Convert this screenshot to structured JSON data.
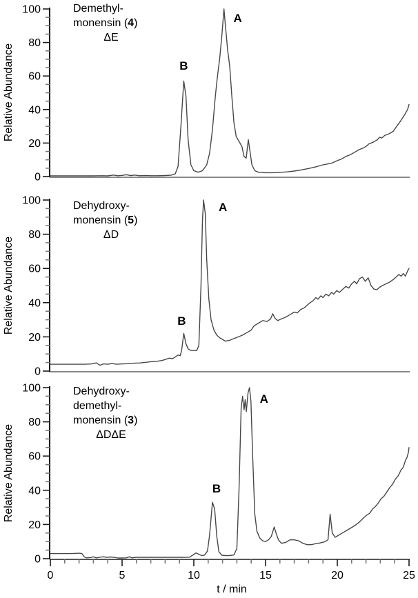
{
  "figure": {
    "y_axis_label": "Relative Abundance",
    "x_axis_label": "t / min"
  },
  "chart_data": {
    "type": "line",
    "xlabel": "t / min",
    "ylabel": "Relative Abundance",
    "xlim": [
      0,
      25
    ],
    "ylim": [
      0,
      100
    ],
    "x_tick_labels": [
      0,
      5,
      10,
      15,
      20,
      25
    ],
    "x_minor_step": 1,
    "y_tick_labels": [
      0,
      20,
      40,
      60,
      80,
      100
    ],
    "y_minor_step": 5,
    "trace_color": "#474747",
    "axis_color": "#1a1a1a",
    "panels": [
      {
        "name": "demethylmonensin",
        "title_lines": [
          "Demethyl-"
        ],
        "compound_line": {
          "pre": "monensin (",
          "number": "4",
          "post": ")"
        },
        "delta_label": "ΔE",
        "peaks": [
          {
            "label": "A",
            "t": 12.1,
            "abundance": 100
          },
          {
            "label": "B",
            "t": 9.3,
            "abundance": 57
          }
        ],
        "series": [
          [
            0,
            0.4
          ],
          [
            1,
            0.4
          ],
          [
            2,
            0.4
          ],
          [
            3,
            0.4
          ],
          [
            3.6,
            0.5
          ],
          [
            4,
            0.4
          ],
          [
            4.4,
            0.9
          ],
          [
            4.7,
            0.5
          ],
          [
            5,
            0.7
          ],
          [
            5.3,
            1.1
          ],
          [
            5.6,
            0.6
          ],
          [
            5.9,
            0.9
          ],
          [
            6.2,
            0.5
          ],
          [
            6.6,
            0.6
          ],
          [
            7,
            0.5
          ],
          [
            7.5,
            0.5
          ],
          [
            8,
            0.6
          ],
          [
            8.4,
            0.8
          ],
          [
            8.7,
            1.6
          ],
          [
            8.9,
            6
          ],
          [
            9.1,
            30
          ],
          [
            9.3,
            57
          ],
          [
            9.45,
            48
          ],
          [
            9.6,
            22
          ],
          [
            9.8,
            7
          ],
          [
            10,
            3.5
          ],
          [
            10.3,
            2.6
          ],
          [
            10.6,
            3.5
          ],
          [
            10.9,
            7
          ],
          [
            11.1,
            14
          ],
          [
            11.3,
            28
          ],
          [
            11.5,
            48
          ],
          [
            11.65,
            60
          ],
          [
            11.8,
            70
          ],
          [
            11.95,
            84
          ],
          [
            12.1,
            100
          ],
          [
            12.2,
            90
          ],
          [
            12.35,
            76
          ],
          [
            12.5,
            66
          ],
          [
            12.65,
            48
          ],
          [
            12.8,
            32
          ],
          [
            12.95,
            24
          ],
          [
            13.15,
            21
          ],
          [
            13.35,
            18
          ],
          [
            13.5,
            12
          ],
          [
            13.65,
            11
          ],
          [
            13.8,
            22
          ],
          [
            13.9,
            16
          ],
          [
            14.05,
            7
          ],
          [
            14.25,
            3.5
          ],
          [
            14.5,
            2.6
          ],
          [
            15,
            2.3
          ],
          [
            15.5,
            2.3
          ],
          [
            16,
            2.5
          ],
          [
            16.5,
            2.8
          ],
          [
            17,
            3.3
          ],
          [
            17.5,
            4
          ],
          [
            18,
            4.8
          ],
          [
            18.5,
            5.8
          ],
          [
            19,
            7
          ],
          [
            19.3,
            7.5
          ],
          [
            19.6,
            8
          ],
          [
            20,
            9.5
          ],
          [
            20.3,
            10.5
          ],
          [
            20.6,
            12
          ],
          [
            20.9,
            13
          ],
          [
            21.2,
            14.5
          ],
          [
            21.5,
            16
          ],
          [
            21.8,
            17
          ],
          [
            22,
            18
          ],
          [
            22.2,
            19.5
          ],
          [
            22.5,
            20.5
          ],
          [
            22.8,
            22
          ],
          [
            22.95,
            23.5
          ],
          [
            23.1,
            23
          ],
          [
            23.3,
            24.5
          ],
          [
            23.6,
            25.5
          ],
          [
            23.9,
            27
          ],
          [
            24.1,
            29.5
          ],
          [
            24.4,
            33
          ],
          [
            24.7,
            37
          ],
          [
            24.9,
            40
          ],
          [
            25,
            43
          ]
        ]
      },
      {
        "name": "dehydroxymonensin",
        "title_lines": [
          "Dehydroxy-"
        ],
        "compound_line": {
          "pre": "monensin (",
          "number": "5",
          "post": ")"
        },
        "delta_label": "ΔD",
        "peaks": [
          {
            "label": "A",
            "t": 10.68,
            "abundance": 100
          },
          {
            "label": "B",
            "t": 9.3,
            "abundance": 22
          }
        ],
        "series": [
          [
            0,
            4
          ],
          [
            0.6,
            4
          ],
          [
            1.2,
            4
          ],
          [
            1.8,
            4
          ],
          [
            2.4,
            4
          ],
          [
            2.9,
            4.2
          ],
          [
            3.2,
            4.8
          ],
          [
            3.45,
            3.4
          ],
          [
            3.7,
            4.2
          ],
          [
            4,
            4
          ],
          [
            4.3,
            4.4
          ],
          [
            4.6,
            4
          ],
          [
            5,
            4.2
          ],
          [
            5.4,
            4.3
          ],
          [
            5.8,
            4.6
          ],
          [
            6.2,
            4.7
          ],
          [
            6.6,
            5.1
          ],
          [
            7,
            5.5
          ],
          [
            7.4,
            5.7
          ],
          [
            7.8,
            6.2
          ],
          [
            8.1,
            7
          ],
          [
            8.3,
            7.6
          ],
          [
            8.5,
            7.2
          ],
          [
            8.7,
            8.2
          ],
          [
            8.9,
            9.4
          ],
          [
            9.05,
            9
          ],
          [
            9.15,
            12
          ],
          [
            9.3,
            22
          ],
          [
            9.45,
            16
          ],
          [
            9.6,
            13
          ],
          [
            9.8,
            12
          ],
          [
            10,
            12
          ],
          [
            10.2,
            12
          ],
          [
            10.35,
            15
          ],
          [
            10.5,
            50
          ],
          [
            10.6,
            88
          ],
          [
            10.68,
            100
          ],
          [
            10.8,
            92
          ],
          [
            10.9,
            65
          ],
          [
            11.05,
            42
          ],
          [
            11.2,
            30
          ],
          [
            11.4,
            24
          ],
          [
            11.6,
            21
          ],
          [
            11.8,
            19.5
          ],
          [
            12,
            18.5
          ],
          [
            12.2,
            17.5
          ],
          [
            12.5,
            18
          ],
          [
            12.8,
            19
          ],
          [
            13.1,
            20
          ],
          [
            13.4,
            21
          ],
          [
            13.7,
            22.5
          ],
          [
            14,
            24
          ],
          [
            14.2,
            26.5
          ],
          [
            14.5,
            28
          ],
          [
            14.8,
            29.5
          ],
          [
            15.1,
            29
          ],
          [
            15.35,
            30.5
          ],
          [
            15.5,
            33.5
          ],
          [
            15.65,
            31
          ],
          [
            15.85,
            29.5
          ],
          [
            16.1,
            30.5
          ],
          [
            16.4,
            31.5
          ],
          [
            16.7,
            33
          ],
          [
            17,
            34.5
          ],
          [
            17.2,
            34
          ],
          [
            17.45,
            36
          ],
          [
            17.7,
            37
          ],
          [
            17.9,
            38.5
          ],
          [
            18.1,
            40
          ],
          [
            18.3,
            41
          ],
          [
            18.5,
            43
          ],
          [
            18.65,
            42
          ],
          [
            18.85,
            44
          ],
          [
            19,
            43
          ],
          [
            19.2,
            45
          ],
          [
            19.4,
            44
          ],
          [
            19.6,
            46
          ],
          [
            19.75,
            45
          ],
          [
            19.95,
            47
          ],
          [
            20.15,
            46
          ],
          [
            20.4,
            48
          ],
          [
            20.6,
            49.5
          ],
          [
            20.8,
            48.5
          ],
          [
            21,
            51
          ],
          [
            21.2,
            52.5
          ],
          [
            21.35,
            51
          ],
          [
            21.55,
            54
          ],
          [
            21.75,
            55
          ],
          [
            21.95,
            52.5
          ],
          [
            22.15,
            54.5
          ],
          [
            22.35,
            50
          ],
          [
            22.55,
            48
          ],
          [
            22.75,
            47.5
          ],
          [
            22.95,
            49
          ],
          [
            23.15,
            50
          ],
          [
            23.4,
            51
          ],
          [
            23.65,
            52
          ],
          [
            23.9,
            53.5
          ],
          [
            24.1,
            55
          ],
          [
            24.3,
            56.5
          ],
          [
            24.45,
            55.5
          ],
          [
            24.6,
            57
          ],
          [
            24.75,
            55.5
          ],
          [
            24.9,
            58.5
          ],
          [
            25,
            60
          ]
        ]
      },
      {
        "name": "dehydroxydemethylmonensin",
        "title_lines": [
          "Dehydroxy-",
          "demethyl-"
        ],
        "compound_line": {
          "pre": "monensin (",
          "number": "3",
          "post": ")"
        },
        "delta_label": "ΔDΔE",
        "peaks": [
          {
            "label": "A",
            "t": 13.88,
            "abundance": 100
          },
          {
            "label": "B",
            "t": 11.3,
            "abundance": 33
          }
        ],
        "series": [
          [
            0,
            3
          ],
          [
            0.5,
            3
          ],
          [
            1,
            3
          ],
          [
            1.5,
            3
          ],
          [
            2,
            3.2
          ],
          [
            2.2,
            3
          ],
          [
            2.35,
            1.2
          ],
          [
            2.5,
            0.5
          ],
          [
            2.8,
            0.7
          ],
          [
            3,
            1.1
          ],
          [
            3.2,
            0.5
          ],
          [
            3.45,
            0.9
          ],
          [
            3.7,
            1.1
          ],
          [
            3.95,
            0.8
          ],
          [
            4.2,
            1
          ],
          [
            4.45,
            0.8
          ],
          [
            4.7,
            0.4
          ],
          [
            5,
            0.4
          ],
          [
            5.3,
            0.5
          ],
          [
            5.5,
            1.1
          ],
          [
            5.7,
            0.5
          ],
          [
            5.95,
            0.8
          ],
          [
            6.3,
            0.8
          ],
          [
            6.8,
            0.8
          ],
          [
            7.3,
            0.8
          ],
          [
            7.8,
            0.8
          ],
          [
            8.3,
            0.8
          ],
          [
            8.8,
            0.8
          ],
          [
            9.3,
            0.8
          ],
          [
            9.7,
            0.9
          ],
          [
            9.95,
            2.2
          ],
          [
            10.15,
            3.4
          ],
          [
            10.35,
            2.6
          ],
          [
            10.55,
            1.8
          ],
          [
            10.75,
            2.1
          ],
          [
            10.95,
            4.5
          ],
          [
            11.1,
            14
          ],
          [
            11.3,
            33
          ],
          [
            11.45,
            29
          ],
          [
            11.6,
            13
          ],
          [
            11.75,
            4
          ],
          [
            11.95,
            2
          ],
          [
            12.2,
            1.8
          ],
          [
            12.5,
            1.8
          ],
          [
            12.8,
            2.2
          ],
          [
            13,
            6
          ],
          [
            13.15,
            40
          ],
          [
            13.3,
            88
          ],
          [
            13.4,
            95
          ],
          [
            13.5,
            87
          ],
          [
            13.58,
            93
          ],
          [
            13.66,
            86
          ],
          [
            13.78,
            97
          ],
          [
            13.88,
            100
          ],
          [
            13.98,
            92
          ],
          [
            14.1,
            60
          ],
          [
            14.25,
            26
          ],
          [
            14.4,
            16
          ],
          [
            14.6,
            12
          ],
          [
            14.8,
            10.5
          ],
          [
            15,
            10
          ],
          [
            15.2,
            11
          ],
          [
            15.4,
            13
          ],
          [
            15.6,
            18.5
          ],
          [
            15.75,
            14.5
          ],
          [
            15.9,
            11
          ],
          [
            16.1,
            9
          ],
          [
            16.4,
            9.5
          ],
          [
            16.7,
            11
          ],
          [
            17,
            11
          ],
          [
            17.3,
            10.5
          ],
          [
            17.6,
            9
          ],
          [
            17.9,
            8.2
          ],
          [
            18.2,
            8.2
          ],
          [
            18.5,
            8.8
          ],
          [
            18.8,
            9.2
          ],
          [
            19.1,
            9.8
          ],
          [
            19.35,
            11
          ],
          [
            19.5,
            26
          ],
          [
            19.65,
            15
          ],
          [
            19.85,
            12.5
          ],
          [
            20.05,
            13.5
          ],
          [
            20.35,
            15
          ],
          [
            20.65,
            16.5
          ],
          [
            20.95,
            18
          ],
          [
            21.25,
            19.5
          ],
          [
            21.55,
            21.5
          ],
          [
            21.85,
            24
          ],
          [
            22.05,
            25.5
          ],
          [
            22.25,
            26.5
          ],
          [
            22.45,
            29
          ],
          [
            22.65,
            30.5
          ],
          [
            22.85,
            32.5
          ],
          [
            23.05,
            35
          ],
          [
            23.25,
            36.5
          ],
          [
            23.45,
            39
          ],
          [
            23.65,
            41.5
          ],
          [
            23.85,
            43.5
          ],
          [
            24.05,
            46.5
          ],
          [
            24.25,
            48.5
          ],
          [
            24.45,
            52
          ],
          [
            24.6,
            53.5
          ],
          [
            24.75,
            57.5
          ],
          [
            24.85,
            59
          ],
          [
            24.95,
            62
          ],
          [
            25,
            65
          ]
        ]
      }
    ]
  }
}
